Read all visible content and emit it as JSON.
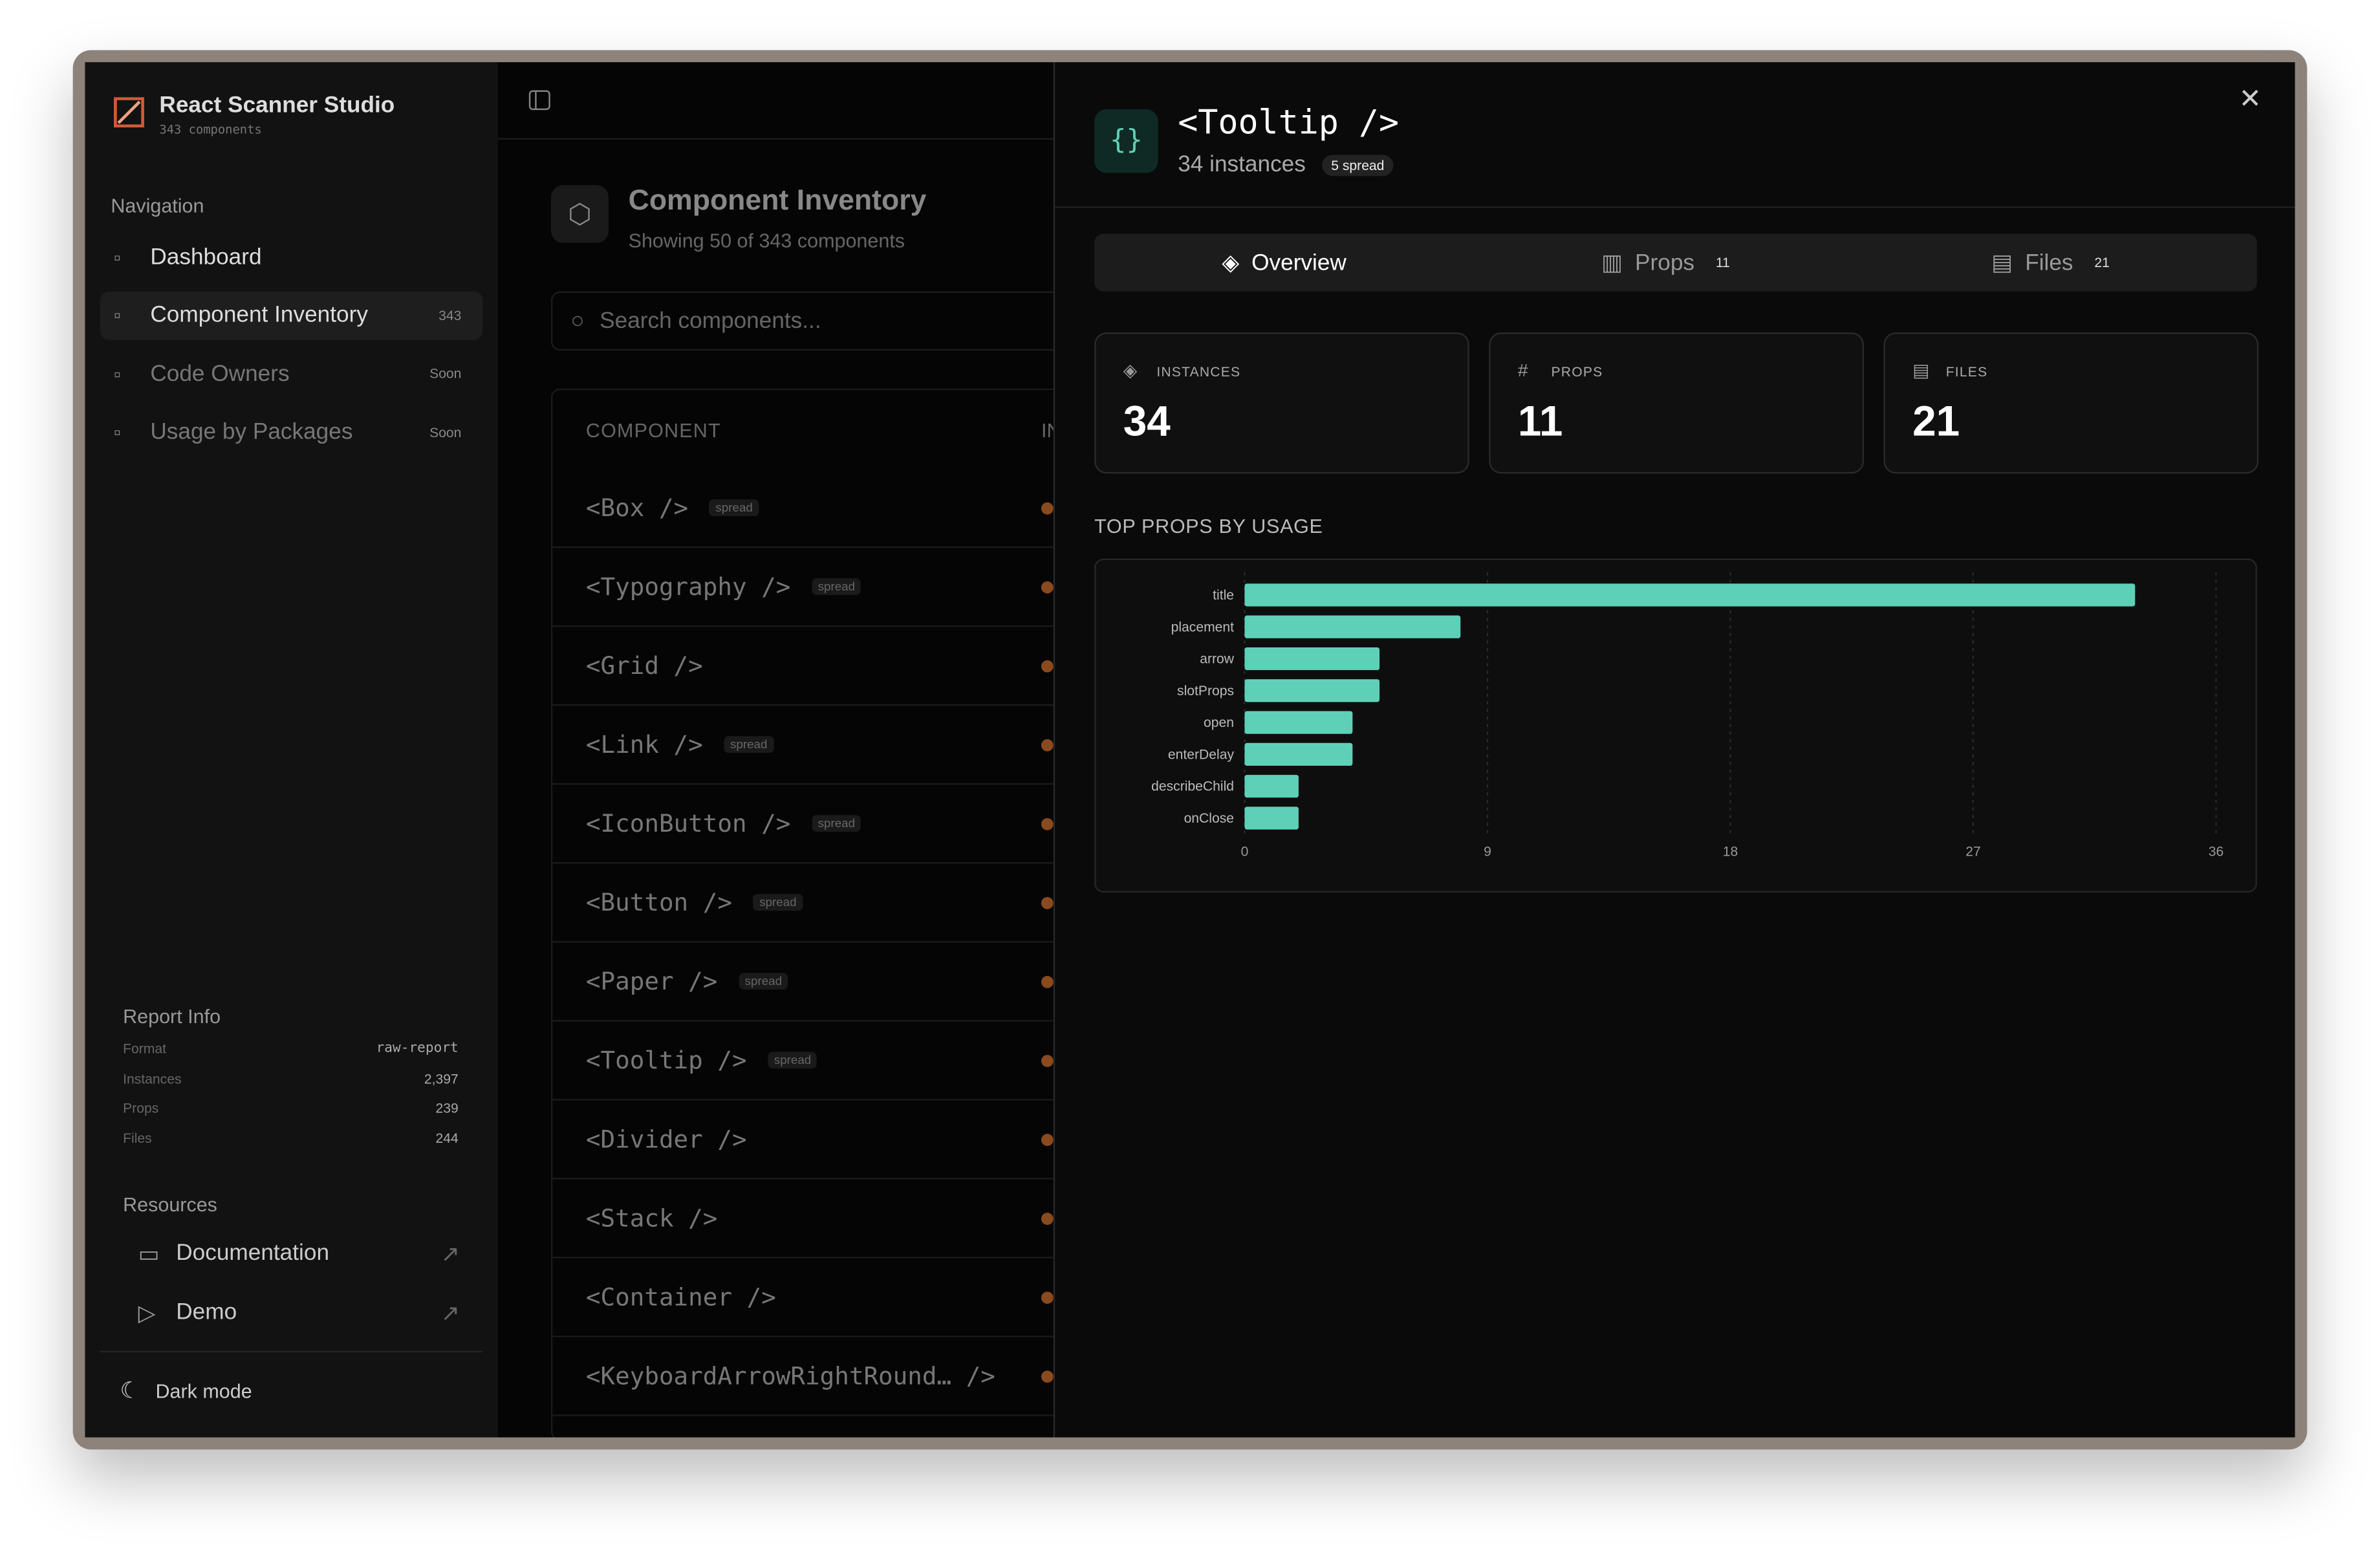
{
  "app": {
    "name": "React Scanner Studio",
    "subtitle": "343 components"
  },
  "nav": {
    "heading": "Navigation",
    "items": [
      {
        "label": "Dashboard"
      },
      {
        "label": "Component Inventory",
        "badge": "343"
      },
      {
        "label": "Code Owners",
        "badge": "Soon"
      },
      {
        "label": "Usage by Packages",
        "badge": "Soon"
      }
    ]
  },
  "report": {
    "heading": "Report Info",
    "rows": [
      [
        "Format",
        "raw-report"
      ],
      [
        "Instances",
        "2,397"
      ],
      [
        "Props",
        "239"
      ],
      [
        "Files",
        "244"
      ]
    ]
  },
  "resources": {
    "heading": "Resources",
    "items": [
      "Documentation",
      "Demo"
    ]
  },
  "theme_toggle": "Dark mode",
  "inventory": {
    "title": "Component Inventory",
    "subtitle": "Showing 50 of 343 components",
    "search_placeholder": "Search components...",
    "columns": [
      "COMPONENT",
      "INSTANCES"
    ],
    "rows": [
      {
        "name": "<Box />",
        "tag": "spread"
      },
      {
        "name": "<Typography />",
        "tag": "spread"
      },
      {
        "name": "<Grid />"
      },
      {
        "name": "<Link />",
        "tag": "spread"
      },
      {
        "name": "<IconButton />",
        "tag": "spread"
      },
      {
        "name": "<Button />",
        "tag": "spread"
      },
      {
        "name": "<Paper />",
        "tag": "spread"
      },
      {
        "name": "<Tooltip />",
        "tag": "spread"
      },
      {
        "name": "<Divider />"
      },
      {
        "name": "<Stack />"
      },
      {
        "name": "<Container />"
      },
      {
        "name": "<KeyboardArrowRightRound… />"
      }
    ]
  },
  "detail": {
    "icon": "{}",
    "title": "<Tooltip />",
    "instances": "34 instances",
    "badge": "5 spread",
    "tabs": [
      {
        "label": "Overview"
      },
      {
        "label": "Props",
        "count": "11"
      },
      {
        "label": "Files",
        "count": "21"
      }
    ],
    "stats": [
      {
        "label": "INSTANCES",
        "value": 34
      },
      {
        "label": "PROPS",
        "value": 11
      },
      {
        "label": "FILES",
        "value": 21
      }
    ],
    "chart_heading": "TOP PROPS BY USAGE",
    "chart": {
      "type": "bar",
      "orientation": "horizontal",
      "categories": [
        "title",
        "placement",
        "arrow",
        "slotProps",
        "open",
        "enterDelay",
        "describeChild",
        "onClose"
      ],
      "values": [
        33,
        8,
        5,
        5,
        4,
        4,
        2,
        2
      ],
      "color": "#5fd0b8",
      "xlim": [
        0,
        36
      ],
      "xticks": [
        0,
        9,
        18,
        27,
        36
      ],
      "grid": true
    }
  }
}
